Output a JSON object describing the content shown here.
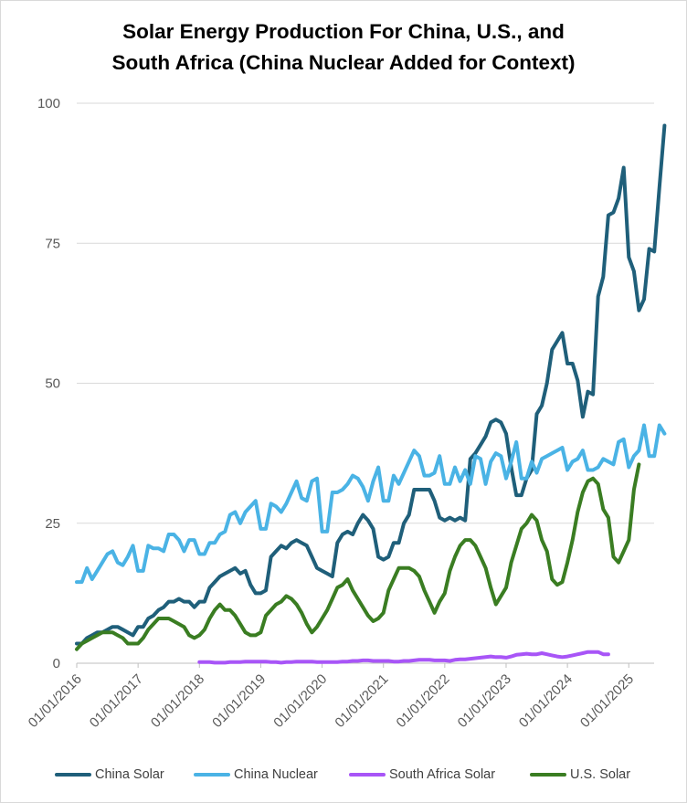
{
  "chart_data": {
    "type": "line",
    "title": [
      "Solar Energy Production For China, U.S., and",
      "South Africa (China Nuclear Added for Context)"
    ],
    "xlabel": "",
    "ylabel": "",
    "ylim": [
      0,
      100
    ],
    "yticks": [
      "0",
      "25",
      "50",
      "75",
      "100"
    ],
    "x_tick_labels": [
      "01/01/2016",
      "01/01/2017",
      "01/01/2018",
      "01/01/2019",
      "01/01/2020",
      "01/01/2021",
      "01/01/2022",
      "01/01/2023",
      "01/01/2024",
      "01/01/2025"
    ],
    "x_start": "2016-01",
    "grid": true,
    "legend_position": "bottom",
    "series": [
      {
        "name": "China Solar",
        "color": "#1f5f7a",
        "start_index": 0,
        "values": [
          3.5,
          3.5,
          4.5,
          5,
          5.5,
          5.5,
          6,
          6.5,
          6.5,
          6,
          5.5,
          5,
          6.5,
          6.5,
          8,
          8.5,
          9.5,
          10,
          11,
          11,
          11.5,
          11,
          11,
          10,
          11,
          11,
          13.5,
          14.5,
          15.5,
          16,
          16.5,
          17,
          16,
          16.5,
          14,
          12.5,
          12.5,
          13,
          19,
          20,
          21,
          20.5,
          21.5,
          22,
          21.5,
          21,
          19,
          17,
          16.5,
          16,
          15.5,
          21.5,
          23,
          23.5,
          23,
          25,
          26.5,
          25.5,
          24,
          19,
          18.5,
          19,
          21.5,
          21.5,
          25,
          26.5,
          31,
          31,
          31,
          31,
          29,
          26,
          25.5,
          26,
          25.5,
          26,
          25.5,
          36.5,
          37.5,
          39,
          40.5,
          43,
          43.5,
          43,
          41,
          35,
          30,
          30,
          33,
          34.5,
          44.5,
          46,
          50,
          56,
          57.5,
          59,
          53.5,
          53.5,
          50.5,
          44,
          48.5,
          48,
          65.5,
          69,
          80,
          80.5,
          83,
          88.5,
          72.5,
          70,
          63,
          65,
          74,
          73.5,
          85,
          96
        ]
      },
      {
        "name": "China Nuclear",
        "color": "#4ab3e5",
        "start_index": 0,
        "values": [
          14.5,
          14.5,
          17,
          15,
          16.5,
          18,
          19.5,
          20,
          18,
          17.5,
          19,
          21,
          16.5,
          16.5,
          21,
          20.5,
          20.5,
          20,
          23,
          23,
          22,
          20,
          22,
          22,
          19.5,
          19.5,
          21.5,
          21.5,
          23,
          23.5,
          26.5,
          27,
          25,
          27,
          28,
          29,
          24,
          24,
          28.5,
          28,
          27,
          28.5,
          30.5,
          32.5,
          29.5,
          29,
          32.5,
          33,
          23.5,
          23.5,
          30.5,
          30.5,
          31,
          32,
          33.5,
          33,
          31.5,
          29,
          32.5,
          35,
          29,
          29,
          33.5,
          32,
          34,
          36,
          38,
          37,
          33.5,
          33.5,
          34,
          37,
          32,
          32,
          35,
          32.5,
          34.5,
          32,
          37,
          36.5,
          32,
          36,
          37.5,
          37,
          33,
          36,
          39.5,
          33,
          33,
          36,
          34,
          36.5,
          37,
          37.5,
          38,
          38.5,
          34.5,
          36,
          36.5,
          38,
          34.5,
          34.5,
          35,
          36.5,
          36,
          35.5,
          39.5,
          40,
          35,
          37,
          38,
          42.5,
          37,
          37,
          42.5,
          41
        ]
      },
      {
        "name": "South Africa Solar",
        "color": "#a855f7",
        "start_index": 24,
        "values": [
          0.2,
          0.2,
          0.2,
          0.1,
          0.1,
          0.1,
          0.2,
          0.2,
          0.2,
          0.3,
          0.3,
          0.3,
          0.3,
          0.3,
          0.2,
          0.2,
          0.1,
          0.2,
          0.2,
          0.3,
          0.3,
          0.3,
          0.3,
          0.2,
          0.2,
          0.2,
          0.2,
          0.2,
          0.3,
          0.3,
          0.4,
          0.4,
          0.5,
          0.5,
          0.4,
          0.4,
          0.4,
          0.4,
          0.3,
          0.3,
          0.4,
          0.4,
          0.5,
          0.6,
          0.6,
          0.6,
          0.5,
          0.5,
          0.5,
          0.4,
          0.6,
          0.7,
          0.7,
          0.8,
          0.9,
          1,
          1.1,
          1.2,
          1.1,
          1.1,
          1,
          1.2,
          1.5,
          1.6,
          1.7,
          1.6,
          1.6,
          1.8,
          1.6,
          1.4,
          1.2,
          1.1,
          1.2,
          1.4,
          1.6,
          1.8,
          2,
          2,
          2,
          1.6,
          1.6
        ]
      },
      {
        "name": "U.S. Solar",
        "color": "#3a7d22",
        "start_index": 0,
        "values": [
          2.5,
          3.5,
          4,
          4.5,
          5,
          5.5,
          5.5,
          5.5,
          5,
          4.5,
          3.5,
          3.5,
          3.5,
          4.5,
          6,
          7,
          8,
          8,
          8,
          7.5,
          7,
          6.5,
          5,
          4.5,
          5,
          6,
          8,
          9.5,
          10.5,
          9.5,
          9.5,
          8.5,
          7,
          5.5,
          5,
          5,
          5.5,
          8.5,
          9.5,
          10.5,
          11,
          12,
          11.5,
          10.5,
          9,
          7,
          5.5,
          6.5,
          8,
          9.5,
          11.5,
          13.5,
          14,
          15,
          13,
          11.5,
          10,
          8.5,
          7.5,
          8,
          9,
          13,
          15,
          17,
          17,
          17,
          16.5,
          15.5,
          13,
          11,
          9,
          11,
          12.5,
          16.5,
          19,
          21,
          22,
          22,
          21,
          19,
          17,
          13.5,
          10.5,
          12,
          13.5,
          18,
          21,
          24,
          25,
          26.5,
          25.5,
          22,
          20,
          15,
          14,
          14.5,
          18,
          22,
          27,
          30.5,
          32.5,
          33,
          32,
          27.5,
          26,
          19,
          18,
          20,
          22,
          31,
          35.5
        ]
      }
    ]
  }
}
